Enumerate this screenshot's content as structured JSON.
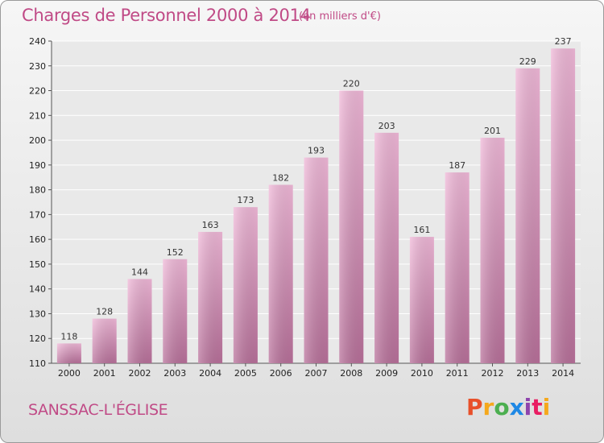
{
  "header": {
    "title": "Charges de Personnel 2000 à 2014",
    "subtitle": "(en milliers d'€)"
  },
  "footer": {
    "commune": "SANSSAC-L'ÉGLISE",
    "logo": "Proxiti"
  },
  "colors": {
    "bar_light": "#f0b8d8",
    "bar_dark": "#b8709a",
    "title": "#c04a86",
    "logo_letters": [
      "#e8502a",
      "#f5a81c",
      "#4caf50",
      "#1e88e5",
      "#8e44ad",
      "#e91e63",
      "#f5a81c"
    ]
  },
  "chart_data": {
    "type": "bar",
    "title": "Charges de Personnel 2000 à 2014",
    "subtitle": "(en milliers d'€)",
    "categories": [
      "2000",
      "2001",
      "2002",
      "2003",
      "2004",
      "2005",
      "2006",
      "2007",
      "2008",
      "2009",
      "2010",
      "2011",
      "2012",
      "2013",
      "2014"
    ],
    "values": [
      118,
      128,
      144,
      152,
      163,
      173,
      182,
      193,
      220,
      203,
      161,
      187,
      201,
      229,
      237
    ],
    "ylim": [
      110,
      240
    ],
    "yticks": [
      110,
      120,
      130,
      140,
      150,
      160,
      170,
      180,
      190,
      200,
      210,
      220,
      230,
      240
    ],
    "grid": true,
    "xlabel": "",
    "ylabel": ""
  }
}
